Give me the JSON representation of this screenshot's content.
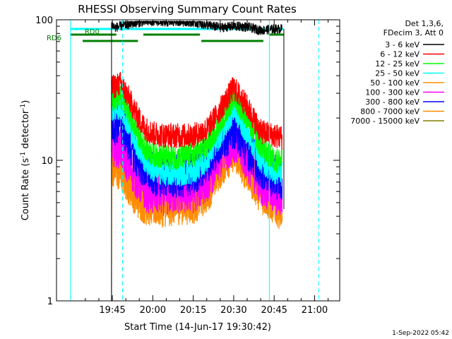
{
  "chart_data": {
    "type": "line",
    "title": "RHESSI Observing Summary Count Rates",
    "xlabel": "Start Time (14-Jun-17 19:30:42)",
    "ylabel_main": "Count Rate (s",
    "ylabel_sup1": "-1",
    "ylabel_mid": " detector",
    "ylabel_sup2": "-1",
    "ylabel_end": ")",
    "x_range_min": [
      -35,
      5
    ],
    "y_scale": "log",
    "ylim": [
      1,
      100
    ],
    "x_ticks": [
      {
        "v": -15,
        "label": "19:45"
      },
      {
        "v": 0,
        "label": "20:00"
      },
      {
        "v": 15,
        "label": "20:15"
      },
      {
        "v": 30,
        "label": "20:30"
      },
      {
        "v": 45,
        "label": "20:45"
      },
      {
        "v": 60,
        "label": "21:00"
      }
    ],
    "y_ticks": [
      {
        "v": 1,
        "label": "1"
      },
      {
        "v": 10,
        "label": "10"
      },
      {
        "v": 100,
        "label": "100"
      }
    ],
    "legend_header": [
      "Det 1,3,6,",
      "FDecim 3, Att 0"
    ],
    "series": [
      {
        "name": "3 - 6 keV",
        "color": "#000000",
        "points": [
          [
            -15.3,
            93
          ],
          [
            -14,
            88
          ],
          [
            -10,
            92
          ],
          [
            -5,
            96
          ],
          [
            0,
            98
          ],
          [
            5,
            96
          ],
          [
            10,
            98
          ],
          [
            15,
            96
          ],
          [
            20,
            92
          ],
          [
            25,
            88
          ],
          [
            30,
            90
          ],
          [
            35,
            89
          ],
          [
            40,
            84
          ],
          [
            45,
            86
          ],
          [
            48,
            86
          ]
        ]
      },
      {
        "name": "6 - 12 keV",
        "color": "#ff0000",
        "points": [
          [
            -15.3,
            33
          ],
          [
            -12,
            35
          ],
          [
            -9,
            28
          ],
          [
            -6,
            21
          ],
          [
            -3,
            17
          ],
          [
            0,
            15.5
          ],
          [
            5,
            15
          ],
          [
            10,
            15
          ],
          [
            15,
            15
          ],
          [
            20,
            16.5
          ],
          [
            25,
            23
          ],
          [
            30,
            33
          ],
          [
            35,
            24
          ],
          [
            40,
            16
          ],
          [
            45,
            15
          ],
          [
            48,
            14.5
          ]
        ]
      },
      {
        "name": "12 - 25 keV",
        "color": "#00ff00",
        "points": [
          [
            -15.3,
            27
          ],
          [
            -12,
            29
          ],
          [
            -9,
            22
          ],
          [
            -6,
            16
          ],
          [
            -3,
            12.5
          ],
          [
            0,
            11
          ],
          [
            5,
            10.5
          ],
          [
            10,
            10.5
          ],
          [
            15,
            11
          ],
          [
            20,
            12.5
          ],
          [
            25,
            19
          ],
          [
            30,
            28
          ],
          [
            35,
            20
          ],
          [
            40,
            12.5
          ],
          [
            45,
            10
          ],
          [
            48,
            10
          ]
        ]
      },
      {
        "name": "25 - 50 keV",
        "color": "#00ffff",
        "points": [
          [
            -15.3,
            23
          ],
          [
            -12,
            24
          ],
          [
            -9,
            18
          ],
          [
            -6,
            13
          ],
          [
            -3,
            10
          ],
          [
            0,
            8.5
          ],
          [
            5,
            8
          ],
          [
            10,
            8
          ],
          [
            15,
            8.2
          ],
          [
            20,
            10
          ],
          [
            25,
            15
          ],
          [
            30,
            23
          ],
          [
            35,
            15.5
          ],
          [
            40,
            10
          ],
          [
            45,
            8.2
          ],
          [
            48,
            8
          ]
        ]
      },
      {
        "name": "50 - 100 keV",
        "color": "#ff8c00",
        "points": [
          [
            -15.3,
            9
          ],
          [
            -12,
            8.5
          ],
          [
            -9,
            7
          ],
          [
            -6,
            5.6
          ],
          [
            -3,
            5
          ],
          [
            0,
            4.8
          ],
          [
            5,
            4.8
          ],
          [
            10,
            5
          ],
          [
            15,
            5
          ],
          [
            20,
            6
          ],
          [
            25,
            9
          ],
          [
            30,
            12
          ],
          [
            35,
            8.5
          ],
          [
            40,
            6
          ],
          [
            45,
            5
          ],
          [
            48,
            4.5
          ]
        ]
      },
      {
        "name": "100 - 300 keV",
        "color": "#ff00ff",
        "points": [
          [
            -15.3,
            13
          ],
          [
            -12,
            12.5
          ],
          [
            -9,
            9.5
          ],
          [
            -6,
            7.5
          ],
          [
            -3,
            6.3
          ],
          [
            0,
            5.8
          ],
          [
            5,
            5.8
          ],
          [
            10,
            6
          ],
          [
            15,
            6
          ],
          [
            20,
            7.2
          ],
          [
            25,
            10.5
          ],
          [
            30,
            14
          ],
          [
            35,
            10
          ],
          [
            40,
            7
          ],
          [
            45,
            5.8
          ],
          [
            48,
            5.6
          ]
        ]
      },
      {
        "name": "300 - 800 keV",
        "color": "#0000ff",
        "points": [
          [
            -15.3,
            18
          ],
          [
            -12,
            19
          ],
          [
            -9,
            14
          ],
          [
            -6,
            10.5
          ],
          [
            -3,
            8.8
          ],
          [
            0,
            8
          ],
          [
            5,
            7.8
          ],
          [
            10,
            7.6
          ],
          [
            15,
            8
          ],
          [
            20,
            9.8
          ],
          [
            25,
            13.5
          ],
          [
            30,
            17.5
          ],
          [
            35,
            12.5
          ],
          [
            40,
            9
          ],
          [
            45,
            7.6
          ],
          [
            48,
            7.5
          ]
        ]
      },
      {
        "name": "800 - 7000 keV",
        "color": "#ff8c00",
        "points": [
          [
            -15.3,
            1
          ],
          [
            -15.2,
            11
          ],
          [
            -12,
            10
          ],
          [
            -9,
            8
          ],
          [
            -6,
            6.5
          ],
          [
            -3,
            5.8
          ],
          [
            0,
            5.5
          ],
          [
            5,
            5.5
          ],
          [
            10,
            5.7
          ],
          [
            15,
            5.8
          ],
          [
            20,
            6.8
          ],
          [
            25,
            10
          ],
          [
            30,
            13
          ],
          [
            35,
            9.2
          ],
          [
            40,
            6.5
          ],
          [
            45,
            5.5
          ],
          [
            48,
            5
          ]
        ]
      },
      {
        "name": "7000 - 15000 keV",
        "color": "#808000",
        "points": []
      }
    ],
    "flags": [
      {
        "label": "RD0",
        "segments": [
          [
            -30.5,
            -13.5
          ],
          [
            -3.5,
            17.5
          ],
          [
            43,
            48.5
          ]
        ]
      },
      {
        "label": "RD6",
        "segments": [
          [
            -26,
            -5.5
          ],
          [
            18,
            41
          ]
        ]
      }
    ],
    "saturation_line": {
      "color": "#00ffff",
      "from": -30.5,
      "to": 48.5
    },
    "vertical_lines": [
      {
        "at": -30.5,
        "style": "solid",
        "color": "#00ffff"
      },
      {
        "at": -11.2,
        "style": "dashed",
        "color": "#00ffff"
      },
      {
        "at": 43.2,
        "style": "solid",
        "color": "#00ffff"
      },
      {
        "at": 61.5,
        "style": "dashed",
        "color": "#00ffff"
      }
    ],
    "grid": false,
    "legend_position": "right",
    "timestamp": "1-Sep-2022 05:42"
  }
}
